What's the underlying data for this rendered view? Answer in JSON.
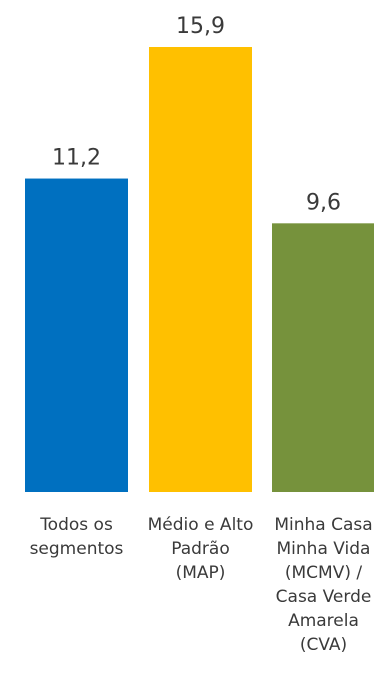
{
  "chart_data": {
    "type": "bar",
    "title": "",
    "xlabel": "",
    "ylabel": "",
    "categories": [
      "Todos os segmentos",
      "Médio e Alto Padrão (MAP)",
      "Minha Casa Minha Vida (MCMV) / Casa Verde Amarela (CVA)"
    ],
    "category_label_lines": [
      [
        "Todos os",
        "segmentos"
      ],
      [
        "Médio e Alto",
        "Padrão",
        "(MAP)"
      ],
      [
        "Minha Casa",
        "Minha Vida",
        "(MCMV) /",
        "Casa Verde",
        "Amarela",
        "(CVA)"
      ]
    ],
    "values": [
      11.2,
      15.9,
      9.6
    ],
    "value_labels": [
      "11,2",
      "15,9",
      "9,6"
    ],
    "colors": [
      "#0070C0",
      "#FFC000",
      "#76923C"
    ],
    "ylim": [
      0,
      15.9
    ],
    "grid": false,
    "legend": "none"
  }
}
